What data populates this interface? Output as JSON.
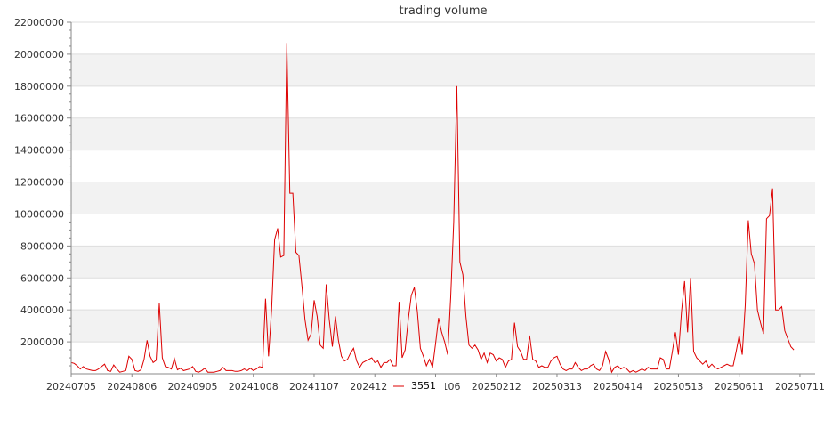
{
  "chart_data": {
    "type": "line",
    "title": "trading volume",
    "xlabel": "",
    "ylabel": "",
    "ylim": [
      0,
      22000000
    ],
    "y_ticks": [
      2000000,
      4000000,
      6000000,
      8000000,
      10000000,
      12000000,
      14000000,
      16000000,
      18000000,
      20000000,
      22000000
    ],
    "x_ticks": [
      {
        "index": 0,
        "label": "20240705"
      },
      {
        "index": 20,
        "label": "20240806"
      },
      {
        "index": 40,
        "label": "20240905"
      },
      {
        "index": 60,
        "label": "20241008"
      },
      {
        "index": 80,
        "label": "20241107"
      },
      {
        "index": 100,
        "label": "20241209"
      },
      {
        "index": 120,
        "label": "20250106"
      },
      {
        "index": 140,
        "label": "20250212"
      },
      {
        "index": 160,
        "label": "20250313"
      },
      {
        "index": 180,
        "label": "20250414"
      },
      {
        "index": 200,
        "label": "20250513"
      },
      {
        "index": 220,
        "label": "20250611"
      },
      {
        "index": 240,
        "label": "20250711"
      }
    ],
    "grid": true,
    "band_color": "#f2f2f2",
    "line_color": "#dd0000",
    "legend_position": "bottom-center",
    "series": [
      {
        "name": "3551",
        "values": [
          700000,
          650000,
          500000,
          300000,
          450000,
          300000,
          250000,
          200000,
          200000,
          300000,
          450000,
          600000,
          200000,
          150000,
          550000,
          300000,
          100000,
          150000,
          200000,
          1100000,
          900000,
          200000,
          150000,
          250000,
          900000,
          2100000,
          1100000,
          700000,
          850000,
          4400000,
          1000000,
          450000,
          400000,
          300000,
          950000,
          250000,
          350000,
          200000,
          250000,
          300000,
          450000,
          150000,
          100000,
          200000,
          350000,
          100000,
          100000,
          100000,
          150000,
          200000,
          400000,
          200000,
          200000,
          200000,
          150000,
          150000,
          200000,
          300000,
          200000,
          350000,
          200000,
          300000,
          450000,
          400000,
          4700000,
          1100000,
          4000000,
          8400000,
          9100000,
          7300000,
          7400000,
          20700000,
          11300000,
          11300000,
          7600000,
          7400000,
          5500000,
          3400000,
          2100000,
          2500000,
          4600000,
          3600000,
          1800000,
          1600000,
          5600000,
          3400000,
          1700000,
          3600000,
          2100000,
          1100000,
          800000,
          900000,
          1300000,
          1600000,
          800000,
          400000,
          700000,
          800000,
          900000,
          1000000,
          700000,
          800000,
          400000,
          700000,
          700000,
          900000,
          500000,
          500000,
          4500000,
          1000000,
          1500000,
          3400000,
          4900000,
          5400000,
          3900000,
          1600000,
          1100000,
          500000,
          900000,
          400000,
          1900000,
          3500000,
          2600000,
          2000000,
          1200000,
          4800000,
          9500000,
          18000000,
          7000000,
          6200000,
          3600000,
          1800000,
          1600000,
          1800000,
          1500000,
          900000,
          1300000,
          700000,
          1300000,
          1200000,
          800000,
          1000000,
          900000,
          400000,
          800000,
          900000,
          3200000,
          1700000,
          1400000,
          900000,
          900000,
          2400000,
          900000,
          800000,
          400000,
          500000,
          400000,
          400000,
          800000,
          1000000,
          1100000,
          600000,
          300000,
          200000,
          300000,
          300000,
          700000,
          400000,
          200000,
          300000,
          300000,
          500000,
          600000,
          300000,
          200000,
          500000,
          1400000,
          900000,
          100000,
          400000,
          500000,
          300000,
          400000,
          300000,
          100000,
          200000,
          100000,
          200000,
          300000,
          200000,
          400000,
          300000,
          300000,
          300000,
          1000000,
          900000,
          300000,
          300000,
          1400000,
          2600000,
          1200000,
          3900000,
          5800000,
          2600000,
          6000000,
          1400000,
          1000000,
          800000,
          600000,
          800000,
          400000,
          600000,
          400000,
          300000,
          400000,
          500000,
          600000,
          500000,
          500000,
          1400000,
          2400000,
          1200000,
          4300000,
          9600000,
          7500000,
          6900000,
          4000000,
          3200000,
          2500000,
          9700000,
          9900000,
          11600000,
          4000000,
          4000000,
          4200000,
          2700000,
          2200000,
          1700000,
          1500000
        ]
      }
    ]
  }
}
